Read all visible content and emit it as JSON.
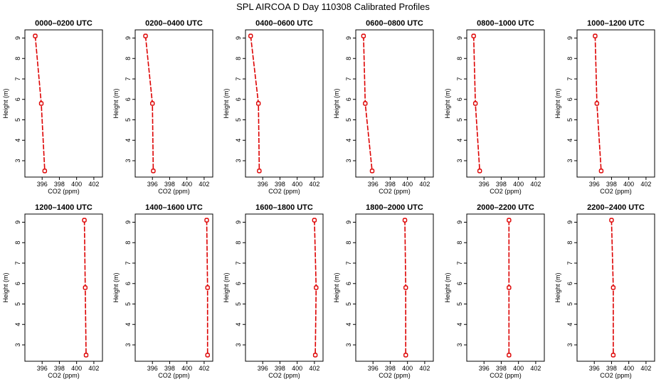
{
  "chart_data": {
    "type": "line",
    "title": "SPL AIRCOA D  Day 110308  Calibrated Profiles",
    "xlabel": "CO2 (ppm)",
    "ylabel": "Height (m)",
    "xlim": [
      394.0,
      403.0
    ],
    "ylim": [
      2.2,
      9.4
    ],
    "x_ticks": [
      396,
      398,
      400,
      402
    ],
    "y_ticks": [
      3,
      4,
      5,
      6,
      7,
      8,
      9
    ],
    "heights": [
      9.1,
      5.8,
      2.5
    ],
    "series": [
      {
        "name": "0000–0200 UTC",
        "co2": [
          395.2,
          395.9,
          396.3
        ]
      },
      {
        "name": "0200–0400 UTC",
        "co2": [
          395.2,
          396.0,
          396.1
        ]
      },
      {
        "name": "0400–0600 UTC",
        "co2": [
          394.6,
          395.5,
          395.6
        ]
      },
      {
        "name": "0600–0800 UTC",
        "co2": [
          394.9,
          395.1,
          395.9
        ]
      },
      {
        "name": "0800–1000 UTC",
        "co2": [
          394.8,
          395.0,
          395.5
        ]
      },
      {
        "name": "1000–1200 UTC",
        "co2": [
          396.1,
          396.3,
          396.8
        ]
      },
      {
        "name": "1200–1400 UTC",
        "co2": [
          400.9,
          401.0,
          401.1
        ]
      },
      {
        "name": "1400–1600 UTC",
        "co2": [
          402.3,
          402.4,
          402.4
        ]
      },
      {
        "name": "1600–1800 UTC",
        "co2": [
          402.0,
          402.2,
          402.1
        ]
      },
      {
        "name": "1800–2000 UTC",
        "co2": [
          399.7,
          399.8,
          399.8
        ]
      },
      {
        "name": "2000–2200 UTC",
        "co2": [
          398.9,
          398.9,
          398.9
        ]
      },
      {
        "name": "2200–2400 UTC",
        "co2": [
          398.0,
          398.2,
          398.2
        ]
      }
    ]
  }
}
